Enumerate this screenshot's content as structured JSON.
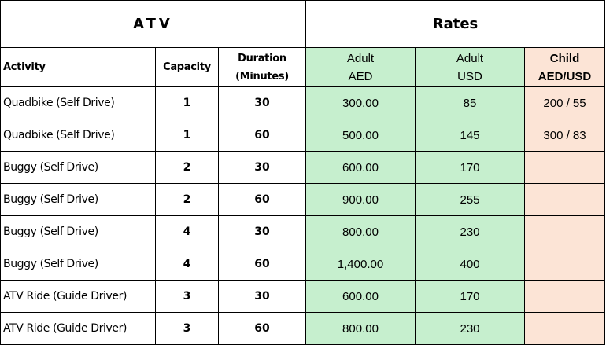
{
  "title_left": "ATV",
  "title_right": "Rates",
  "headers": {
    "activity": "Activity",
    "capacity": "Capacity",
    "duration_line1": "Duration",
    "duration_line2": "(Minutes)",
    "adult_aed_line1": "Adult",
    "adult_aed_line2": "AED",
    "adult_usd_line1": "Adult",
    "adult_usd_line2": "USD",
    "child_line1": "Child",
    "child_line2": "AED/USD"
  },
  "colors": {
    "adult_fill": "#c6efce",
    "child_fill": "#fce4d6",
    "border": "#000000"
  },
  "rows": [
    {
      "activity": "Quadbike (Self Drive)",
      "capacity": "1",
      "duration": "30",
      "adult_aed": "300.00",
      "adult_usd": "85",
      "child": "200 / 55"
    },
    {
      "activity": "Quadbike (Self Drive)",
      "capacity": "1",
      "duration": "60",
      "adult_aed": "500.00",
      "adult_usd": "145",
      "child": "300 / 83"
    },
    {
      "activity": "Buggy (Self Drive)",
      "capacity": "2",
      "duration": "30",
      "adult_aed": "600.00",
      "adult_usd": "170",
      "child": ""
    },
    {
      "activity": "Buggy (Self Drive)",
      "capacity": "2",
      "duration": "60",
      "adult_aed": "900.00",
      "adult_usd": "255",
      "child": ""
    },
    {
      "activity": "Buggy (Self Drive)",
      "capacity": "4",
      "duration": "30",
      "adult_aed": "800.00",
      "adult_usd": "230",
      "child": ""
    },
    {
      "activity": "Buggy (Self Drive)",
      "capacity": "4",
      "duration": "60",
      "adult_aed": "1,400.00",
      "adult_usd": "400",
      "child": ""
    },
    {
      "activity": "ATV Ride (Guide Driver)",
      "capacity": "3",
      "duration": "30",
      "adult_aed": "600.00",
      "adult_usd": "170",
      "child": ""
    },
    {
      "activity": "ATV Ride (Guide Driver)",
      "capacity": "3",
      "duration": "60",
      "adult_aed": "800.00",
      "adult_usd": "230",
      "child": ""
    }
  ]
}
